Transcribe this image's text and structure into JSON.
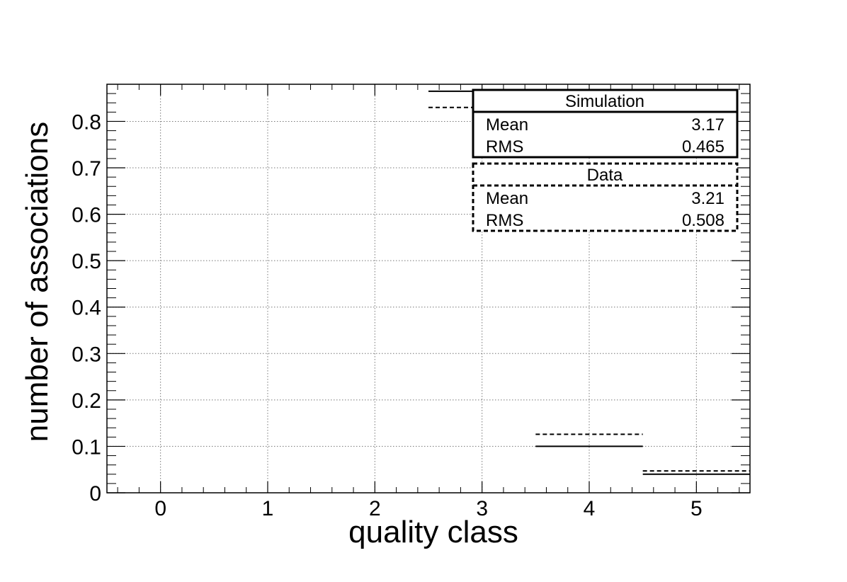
{
  "chart_data": {
    "type": "step",
    "xlabel": "quality class",
    "ylabel": "number of associations",
    "xlim": [
      -0.5,
      5.5
    ],
    "ylim": [
      0,
      0.88
    ],
    "grid": true,
    "x_ticks": [
      "0",
      "1",
      "2",
      "3",
      "4",
      "5"
    ],
    "y_ticks": [
      "0",
      "0.1",
      "0.2",
      "0.3",
      "0.4",
      "0.5",
      "0.6",
      "0.7",
      "0.8"
    ],
    "series": [
      {
        "name": "Simulation",
        "line_style": "solid",
        "bins": [
          {
            "x": 3,
            "value": 0.865
          },
          {
            "x": 4,
            "value": 0.1
          },
          {
            "x": 5,
            "value": 0.04
          }
        ]
      },
      {
        "name": "Data",
        "line_style": "dashed",
        "bins": [
          {
            "x": 3,
            "value": 0.83
          },
          {
            "x": 4,
            "value": 0.126
          },
          {
            "x": 5,
            "value": 0.047
          }
        ]
      }
    ]
  },
  "stats": [
    {
      "title": "Simulation",
      "rows": [
        {
          "label": "Mean",
          "value": "3.17"
        },
        {
          "label": "RMS",
          "value": "0.465"
        }
      ],
      "line_style": "solid"
    },
    {
      "title": "Data",
      "rows": [
        {
          "label": "Mean",
          "value": "3.21"
        },
        {
          "label": "RMS",
          "value": "0.508"
        }
      ],
      "line_style": "dashed"
    }
  ]
}
